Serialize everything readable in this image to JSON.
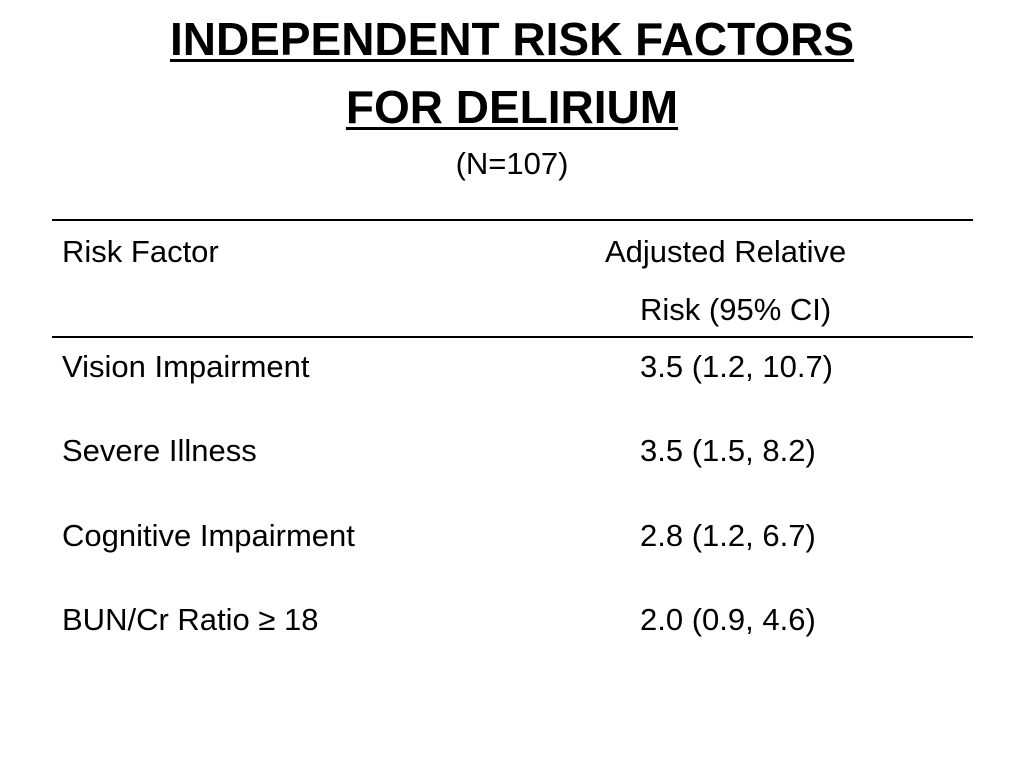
{
  "slide": {
    "title_line1": "INDEPENDENT RISK FACTORS",
    "title_line2": "FOR DELIRIUM",
    "subtitle": "(N=107)"
  },
  "table": {
    "headers": {
      "risk_factor": "Risk Factor",
      "adjusted_line1": "Adjusted Relative",
      "adjusted_line2": "Risk (95% CI)"
    },
    "rows": [
      {
        "factor": "Vision Impairment",
        "value": "3.5 (1.2, 10.7)"
      },
      {
        "factor": "Severe Illness",
        "value": "3.5 (1.5, 8.2)"
      },
      {
        "factor": "Cognitive Impairment",
        "value": "2.8 (1.2, 6.7)"
      },
      {
        "factor": "BUN/Cr Ratio ≥ 18",
        "value": "2.0 (0.9, 4.6)"
      }
    ]
  }
}
